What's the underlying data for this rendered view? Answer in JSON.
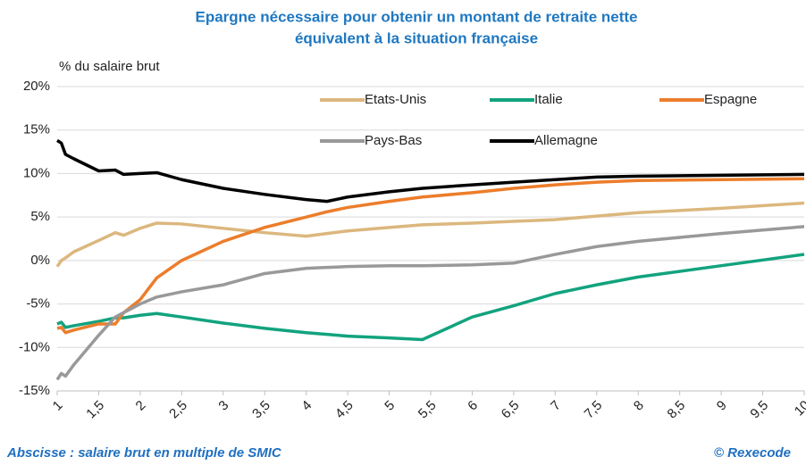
{
  "chart_data": {
    "type": "line",
    "title": "Epargne nécessaire pour obtenir un montant de retraite nette",
    "subtitle": "équivalent à la situation française",
    "y_label": "% du salaire brut",
    "x_label": "Abscisse : salaire brut en multiple de SMIC",
    "source": "© Rexecode",
    "x": [
      1,
      1.05,
      1.1,
      1.2,
      1.5,
      1.7,
      1.8,
      2,
      2.2,
      2.5,
      3,
      3.5,
      4,
      4.25,
      4.5,
      5,
      5.4,
      6,
      6.5,
      7,
      7.5,
      8,
      9,
      10
    ],
    "series": [
      {
        "name": "Etats-Unis",
        "color": "#dcb77e",
        "values": [
          -0.7,
          0,
          0.3,
          1,
          2.3,
          3.2,
          2.9,
          3.7,
          4.3,
          4.2,
          3.7,
          3.2,
          2.8,
          3.1,
          3.4,
          3.8,
          4.1,
          4.3,
          4.5,
          4.7,
          5.1,
          5.5,
          6,
          6.6
        ]
      },
      {
        "name": "Italie",
        "color": "#12a37e",
        "values": [
          -7.3,
          -7.1,
          -7.7,
          -7.5,
          -7,
          -6.6,
          -6.6,
          -6.3,
          -6.1,
          -6.5,
          -7.2,
          -7.8,
          -8.3,
          -8.5,
          -8.7,
          -8.9,
          -9.1,
          -6.5,
          -5.2,
          -3.8,
          -2.8,
          -1.9,
          -0.6,
          0.7
        ]
      },
      {
        "name": "Espagne",
        "color": "#ec7d2b",
        "values": [
          -7.8,
          -7.7,
          -8.3,
          -8,
          -7.3,
          -7.3,
          -6,
          -4.5,
          -2,
          0,
          2.2,
          3.8,
          5,
          5.6,
          6.1,
          6.8,
          7.3,
          7.8,
          8.3,
          8.7,
          9,
          9.2,
          9.3,
          9.4
        ]
      },
      {
        "name": "Pays-Bas",
        "color": "#999999",
        "values": [
          -13.7,
          -13,
          -13.3,
          -12,
          -8.6,
          -6.5,
          -6,
          -5,
          -4.2,
          -3.6,
          -2.8,
          -1.5,
          -0.9,
          -0.8,
          -0.7,
          -0.6,
          -0.6,
          -0.5,
          -0.3,
          0.7,
          1.6,
          2.2,
          3.1,
          3.9
        ]
      },
      {
        "name": "Allemagne",
        "color": "#000000",
        "values": [
          13.8,
          13.5,
          12.2,
          11.7,
          10.3,
          10.4,
          9.9,
          10,
          10.1,
          9.3,
          8.3,
          7.6,
          7,
          6.8,
          7.3,
          7.9,
          8.3,
          8.7,
          9,
          9.3,
          9.6,
          9.7,
          9.8,
          9.9
        ]
      }
    ],
    "xlim": [
      1,
      10
    ],
    "xticks": [
      1,
      {
        "value": 1.5,
        "label": "1,5"
      },
      2,
      {
        "value": 2.5,
        "label": "2,5"
      },
      3,
      {
        "value": 3.5,
        "label": "3,5"
      },
      4,
      {
        "value": 4.5,
        "label": "4,5"
      },
      5,
      {
        "value": 5.5,
        "label": "5,5"
      },
      6,
      {
        "value": 6.5,
        "label": "6,5"
      },
      7,
      {
        "value": 7.5,
        "label": "7,5"
      },
      8,
      {
        "value": 8.5,
        "label": "8,5"
      },
      9,
      {
        "value": 9.5,
        "label": "9,5"
      },
      10
    ],
    "ylim": [
      -15,
      20
    ],
    "yticks": [
      {
        "value": -15,
        "label": "-15%"
      },
      {
        "value": -10,
        "label": "-10%"
      },
      {
        "value": -5,
        "label": "-5%"
      },
      {
        "value": 0,
        "label": "0%"
      },
      {
        "value": 5,
        "label": "5%"
      },
      {
        "value": 10,
        "label": "10%"
      },
      {
        "value": 15,
        "label": "15%"
      },
      {
        "value": 20,
        "label": "20%"
      }
    ],
    "grid": true
  }
}
